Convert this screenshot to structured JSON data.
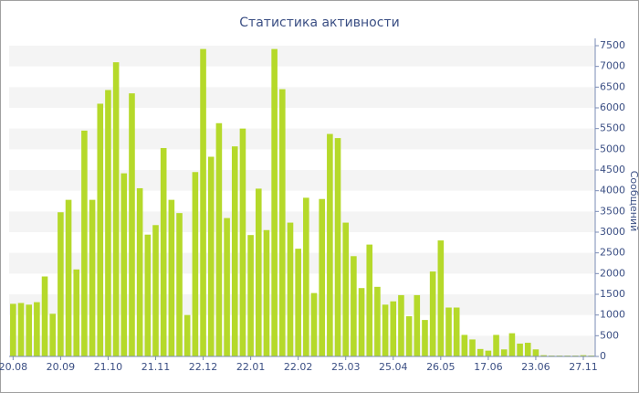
{
  "chart_data": {
    "type": "bar",
    "title": "Статистика активности",
    "y_label": "Сообщений",
    "categories": [
      "20.08",
      null,
      null,
      null,
      null,
      null,
      "20.09",
      null,
      null,
      null,
      null,
      null,
      "21.10",
      null,
      null,
      null,
      null,
      null,
      "21.11",
      null,
      null,
      null,
      null,
      null,
      "22.12",
      null,
      null,
      null,
      null,
      null,
      "22.01",
      null,
      null,
      null,
      null,
      null,
      "22.02",
      null,
      null,
      null,
      null,
      null,
      "25.03",
      null,
      null,
      null,
      null,
      null,
      "25.04",
      null,
      null,
      null,
      null,
      null,
      "26.05",
      null,
      null,
      null,
      null,
      null,
      "17.06",
      null,
      null,
      null,
      null,
      null,
      "23.06",
      null,
      null,
      null,
      null,
      null,
      "27.11",
      null
    ],
    "values": [
      1270,
      1290,
      1250,
      1310,
      1930,
      1030,
      3480,
      3780,
      2100,
      5450,
      3780,
      6100,
      6430,
      7100,
      4420,
      6350,
      4060,
      2940,
      3170,
      5030,
      3780,
      3460,
      1000,
      4450,
      7420,
      4820,
      5630,
      3340,
      5070,
      5500,
      2930,
      4050,
      3050,
      7420,
      6450,
      3230,
      2600,
      3830,
      1530,
      3800,
      5370,
      5270,
      3230,
      2420,
      1650,
      2700,
      1680,
      1250,
      1330,
      1480,
      970,
      1480,
      880,
      2050,
      2800,
      1180,
      1180,
      520,
      410,
      180,
      140,
      520,
      170,
      560,
      310,
      330,
      170,
      30,
      20,
      20,
      20,
      20,
      30,
      20
    ],
    "color": "#b5d92a",
    "ylim": [
      0,
      7500
    ],
    "yticks": [
      0,
      500,
      1000,
      1500,
      2000,
      2500,
      3000,
      3500,
      4000,
      4500,
      5000,
      5500,
      6000,
      6500,
      7000,
      7500
    ],
    "grid": true,
    "axis_side": "right"
  }
}
